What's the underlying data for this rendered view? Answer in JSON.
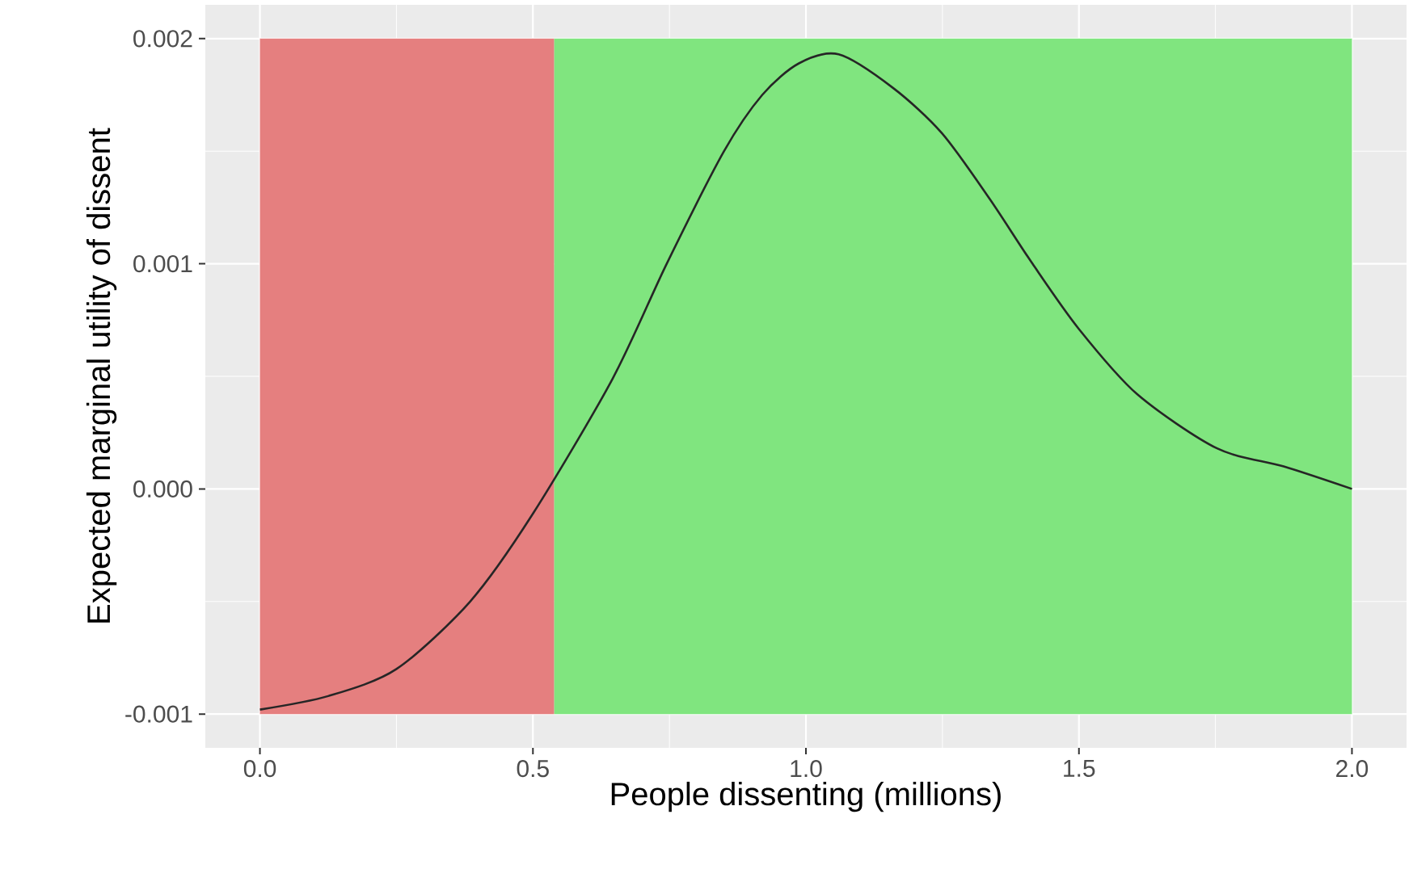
{
  "chart_data": {
    "type": "line",
    "xlabel": "People dissenting (millions)",
    "ylabel": "Expected marginal utility of dissent",
    "series": [
      {
        "color": "#262626",
        "x": [
          0,
          0.125,
          0.25,
          0.385,
          0.5,
          0.646,
          0.745,
          0.85,
          0.92,
          0.987,
          1.06,
          1.16,
          1.249,
          1.336,
          1.415,
          1.5,
          1.607,
          1.753,
          1.875,
          2.0
        ],
        "values": [
          -0.00098,
          -0.00092,
          -0.0008,
          -0.0005,
          -0.00011,
          0.00049,
          0.001,
          0.0015,
          0.00175,
          0.00189,
          0.00193,
          0.00178,
          0.00158,
          0.00129,
          0.001,
          0.00071,
          0.00042,
          0.00018,
          0.0001,
          0.0
        ]
      }
    ],
    "bands": [
      {
        "axis": "x",
        "from": 0,
        "to": 0.539,
        "color": "#e57f7f"
      },
      {
        "axis": "x",
        "from": 0.539,
        "to": 2.0,
        "color": "#80e57f"
      }
    ],
    "xlim": [
      -0.1,
      2.1
    ],
    "ylim": [
      -0.00115,
      0.00215
    ],
    "xticks": [
      {
        "value": 0,
        "label": "0.0"
      },
      {
        "value": 0.5,
        "label": "0.5"
      },
      {
        "value": 1,
        "label": "1.0"
      },
      {
        "value": 1.5,
        "label": "1.5"
      },
      {
        "value": 2,
        "label": "2.0"
      }
    ],
    "yticks": [
      {
        "value": -0.001,
        "label": "-0.001"
      },
      {
        "value": 0,
        "label": "0.000"
      },
      {
        "value": 0.001,
        "label": "0.001"
      },
      {
        "value": 0.002,
        "label": "0.002"
      }
    ],
    "grid": true,
    "marker": "none",
    "line_style": "solid"
  }
}
